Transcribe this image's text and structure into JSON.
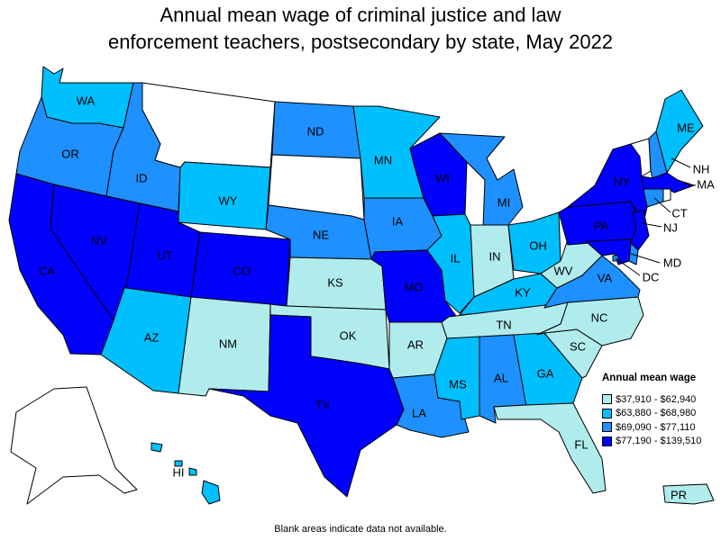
{
  "title_line1": "Annual mean wage of criminal justice and law",
  "title_line2": "enforcement teachers, postsecondary by state, May 2022",
  "legend": {
    "title": "Annual mean wage",
    "items": [
      {
        "label": "$37,910 - $62,940",
        "color": "#b0ecec"
      },
      {
        "label": "$63,880 - $68,980",
        "color": "#00bfff"
      },
      {
        "label": "$69,090 - $77,110",
        "color": "#1e90ff"
      },
      {
        "label": "$77,190 - $139,510",
        "color": "#0000ff"
      }
    ]
  },
  "footnote": "Blank areas indicate data not available.",
  "no_data_color": "#ffffff",
  "states": [
    {
      "code": "WA",
      "tier": 1
    },
    {
      "code": "OR",
      "tier": 2
    },
    {
      "code": "CA",
      "tier": 3
    },
    {
      "code": "ID",
      "tier": 2
    },
    {
      "code": "NV",
      "tier": 3
    },
    {
      "code": "MT",
      "tier": null
    },
    {
      "code": "WY",
      "tier": 1
    },
    {
      "code": "UT",
      "tier": 3
    },
    {
      "code": "AZ",
      "tier": 1
    },
    {
      "code": "CO",
      "tier": 3
    },
    {
      "code": "NM",
      "tier": 0
    },
    {
      "code": "ND",
      "tier": 2
    },
    {
      "code": "SD",
      "tier": null
    },
    {
      "code": "NE",
      "tier": 2
    },
    {
      "code": "KS",
      "tier": 0
    },
    {
      "code": "OK",
      "tier": 0
    },
    {
      "code": "TX",
      "tier": 3
    },
    {
      "code": "MN",
      "tier": 1
    },
    {
      "code": "IA",
      "tier": 2
    },
    {
      "code": "MO",
      "tier": 3
    },
    {
      "code": "AR",
      "tier": 0
    },
    {
      "code": "LA",
      "tier": 2
    },
    {
      "code": "WI",
      "tier": 3
    },
    {
      "code": "IL",
      "tier": 1
    },
    {
      "code": "MI",
      "tier": 2
    },
    {
      "code": "IN",
      "tier": 0
    },
    {
      "code": "OH",
      "tier": 1
    },
    {
      "code": "KY",
      "tier": 1
    },
    {
      "code": "TN",
      "tier": 0
    },
    {
      "code": "MS",
      "tier": 1
    },
    {
      "code": "AL",
      "tier": 2
    },
    {
      "code": "GA",
      "tier": 1
    },
    {
      "code": "FL",
      "tier": 0
    },
    {
      "code": "SC",
      "tier": 0
    },
    {
      "code": "NC",
      "tier": 0
    },
    {
      "code": "VA",
      "tier": 2
    },
    {
      "code": "WV",
      "tier": 0
    },
    {
      "code": "PA",
      "tier": 3
    },
    {
      "code": "NY",
      "tier": 3
    },
    {
      "code": "VT",
      "tier": null
    },
    {
      "code": "NH",
      "tier": 2
    },
    {
      "code": "ME",
      "tier": 1
    },
    {
      "code": "MA",
      "tier": 3
    },
    {
      "code": "CT",
      "tier": 2
    },
    {
      "code": "RI",
      "tier": null
    },
    {
      "code": "NJ",
      "tier": 3
    },
    {
      "code": "DE",
      "tier": 2
    },
    {
      "code": "MD",
      "tier": 3
    },
    {
      "code": "DC",
      "tier": 2
    },
    {
      "code": "HI",
      "tier": 1
    },
    {
      "code": "AK",
      "tier": null
    },
    {
      "code": "PR",
      "tier": 0
    }
  ]
}
